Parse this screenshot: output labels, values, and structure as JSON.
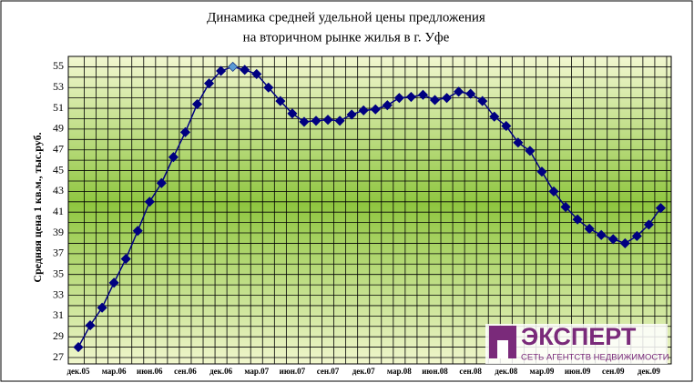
{
  "chart_data": {
    "type": "line",
    "title": "Динамика средней удельной цены предложения",
    "subtitle": "на вторичном рынке жилья в г. Уфе",
    "y_label": "Средняя цена 1 кв.м., тыс.руб.",
    "categories": [
      "дек.05",
      null,
      null,
      "мар.06",
      null,
      null,
      "июн.06",
      null,
      null,
      "сен.06",
      null,
      null,
      "дек.06",
      null,
      null,
      "мар.07",
      null,
      null,
      "июн.07",
      null,
      null,
      "сен.07",
      null,
      null,
      "дек.07",
      null,
      null,
      "мар.08",
      null,
      null,
      "июн.08",
      null,
      null,
      "сен.08",
      null,
      null,
      "дек.08",
      null,
      null,
      "мар.09",
      null,
      null,
      "июн.09",
      null,
      null,
      "сен.09",
      null,
      null,
      "дек.09",
      null
    ],
    "series": [
      {
        "name": "Средняя цена",
        "color": "#000080",
        "values": [
          28,
          30.1,
          31.8,
          34.2,
          36.5,
          39.2,
          42,
          43.8,
          46.3,
          48.7,
          51.4,
          53.4,
          54.6,
          55,
          54.7,
          54.3,
          53,
          51.7,
          50.5,
          49.7,
          49.8,
          49.9,
          49.8,
          50.4,
          50.8,
          50.9,
          51.3,
          52,
          52.1,
          52.3,
          51.8,
          52,
          52.6,
          52.4,
          51.7,
          50.2,
          49.3,
          47.7,
          46.9,
          44.9,
          43,
          41.5,
          40.3,
          39.4,
          38.8,
          38.4,
          38,
          38.7,
          39.8,
          41.4
        ]
      }
    ],
    "highlight": {
      "index": 13,
      "color": "#5b9bd5"
    },
    "ylim": [
      27,
      56
    ],
    "yticks": [
      27,
      29,
      31,
      33,
      35,
      37,
      39,
      41,
      43,
      45,
      47,
      49,
      51,
      53,
      55
    ],
    "grid": true,
    "logo": {
      "name": "ЭКСПЕРТ",
      "tagline": "СЕТЬ АГЕНТСТВ НЕДВИЖИМОСТИ"
    }
  }
}
